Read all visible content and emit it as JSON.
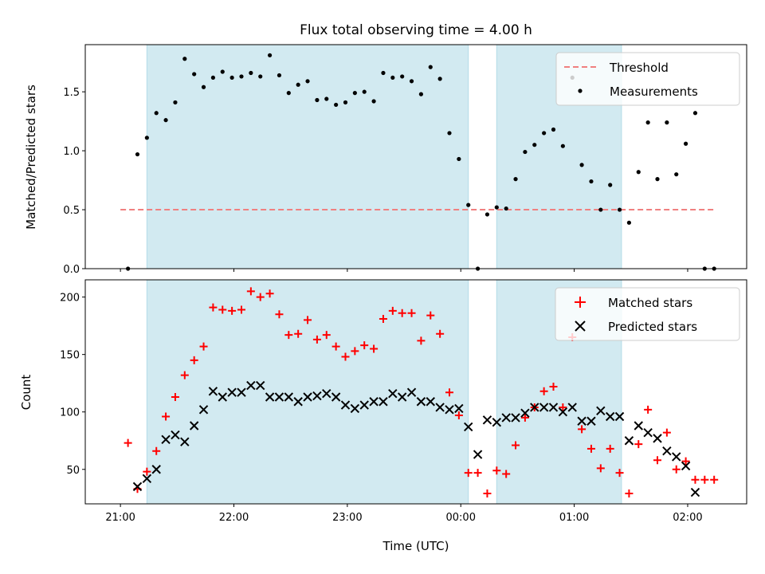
{
  "title": "Flux total observing time = 4.00 h",
  "colors": {
    "shade": "#add8e6",
    "threshold": "#f08080",
    "matched": "#ff0000",
    "predicted": "#000000",
    "measurement": "#000000"
  },
  "chart_data": [
    {
      "type": "scatter",
      "name": "ratio-panel",
      "ylabel": "Matched/Predicted stars",
      "xlabel": "",
      "ylim": [
        0,
        1.9
      ],
      "yticks": [
        "0.0",
        "0.5",
        "1.0",
        "1.5"
      ],
      "yticks_values": [
        0,
        0.5,
        1.0,
        1.5
      ],
      "xlim_hours": [
        20.69,
        26.52
      ],
      "shaded_intervals": [
        [
          "21:14",
          "24:04"
        ],
        [
          "24:19",
          "25:25"
        ]
      ],
      "legend_position": "upper-right",
      "threshold": {
        "label": "Threshold",
        "value": 0.5,
        "x_range": [
          "21:00",
          "26:15"
        ]
      },
      "series": [
        {
          "name": "Measurements",
          "marker": "dot",
          "x": [
            "21:04",
            "21:09",
            "21:14",
            "21:19",
            "21:24",
            "21:29",
            "21:34",
            "21:39",
            "21:44",
            "21:49",
            "21:54",
            "21:59",
            "22:04",
            "22:09",
            "22:14",
            "22:19",
            "22:24",
            "22:29",
            "22:34",
            "22:39",
            "22:44",
            "22:49",
            "22:54",
            "22:59",
            "23:04",
            "23:09",
            "23:14",
            "23:19",
            "23:24",
            "23:29",
            "23:34",
            "23:39",
            "23:44",
            "23:49",
            "23:54",
            "23:59",
            "24:04",
            "24:09",
            "24:14",
            "24:19",
            "24:24",
            "24:29",
            "24:34",
            "24:39",
            "24:44",
            "24:49",
            "24:54",
            "24:59",
            "25:04",
            "25:09",
            "25:14",
            "25:19",
            "25:24",
            "25:29",
            "25:34",
            "25:39",
            "25:44",
            "25:49",
            "25:54",
            "25:59",
            "26:04",
            "26:09",
            "26:14"
          ],
          "y": [
            0.0,
            0.97,
            1.11,
            1.32,
            1.26,
            1.41,
            1.78,
            1.65,
            1.54,
            1.62,
            1.67,
            1.62,
            1.63,
            1.66,
            1.63,
            1.81,
            1.64,
            1.49,
            1.56,
            1.59,
            1.43,
            1.44,
            1.39,
            1.41,
            1.49,
            1.5,
            1.42,
            1.66,
            1.62,
            1.63,
            1.59,
            1.48,
            1.71,
            1.61,
            1.15,
            0.93,
            0.54,
            0.0,
            0.46,
            0.52,
            0.51,
            0.76,
            0.99,
            1.05,
            1.15,
            1.18,
            1.04,
            1.62,
            0.88,
            0.74,
            0.5,
            0.71,
            0.5,
            0.39,
            0.82,
            1.24,
            0.76,
            1.24,
            0.8,
            1.06,
            1.32,
            0.0,
            0.0
          ]
        }
      ]
    },
    {
      "type": "scatter",
      "name": "count-panel",
      "ylabel": "Count",
      "xlabel": "Time (UTC)",
      "ylim": [
        20,
        215
      ],
      "yticks": [
        "50",
        "100",
        "150",
        "200"
      ],
      "yticks_values": [
        50,
        100,
        150,
        200
      ],
      "xlim_hours": [
        20.69,
        26.52
      ],
      "xticks": [
        "21:00",
        "22:00",
        "23:00",
        "00:00",
        "01:00",
        "02:00"
      ],
      "xticks_hours": [
        21,
        22,
        23,
        24,
        25,
        26
      ],
      "shaded_intervals": [
        [
          "21:14",
          "24:04"
        ],
        [
          "24:19",
          "25:25"
        ]
      ],
      "legend_position": "upper-right",
      "series": [
        {
          "name": "Matched stars",
          "marker": "plus",
          "x": [
            "21:04",
            "21:09",
            "21:14",
            "21:19",
            "21:24",
            "21:29",
            "21:34",
            "21:39",
            "21:44",
            "21:49",
            "21:54",
            "21:59",
            "22:04",
            "22:09",
            "22:14",
            "22:19",
            "22:24",
            "22:29",
            "22:34",
            "22:39",
            "22:44",
            "22:49",
            "22:54",
            "22:59",
            "23:04",
            "23:09",
            "23:14",
            "23:19",
            "23:24",
            "23:29",
            "23:34",
            "23:39",
            "23:44",
            "23:49",
            "23:54",
            "23:59",
            "24:04",
            "24:09",
            "24:14",
            "24:19",
            "24:24",
            "24:29",
            "24:34",
            "24:39",
            "24:44",
            "24:49",
            "24:54",
            "24:59",
            "25:04",
            "25:09",
            "25:14",
            "25:19",
            "25:24",
            "25:29",
            "25:34",
            "25:39",
            "25:44",
            "25:49",
            "25:54",
            "25:59",
            "26:04",
            "26:09",
            "26:14"
          ],
          "y": [
            73,
            33,
            48,
            66,
            96,
            113,
            132,
            145,
            157,
            191,
            189,
            188,
            189,
            205,
            200,
            203,
            185,
            167,
            168,
            180,
            163,
            167,
            157,
            148,
            153,
            158,
            155,
            181,
            188,
            186,
            186,
            162,
            184,
            168,
            117,
            97,
            47,
            47,
            29,
            49,
            46,
            71,
            95,
            104,
            118,
            122,
            104,
            165,
            85,
            68,
            51,
            68,
            47,
            29,
            72,
            102,
            58,
            82,
            50,
            57,
            41,
            41,
            41
          ]
        },
        {
          "name": "Predicted stars",
          "marker": "x",
          "x": [
            "21:09",
            "21:14",
            "21:19",
            "21:24",
            "21:29",
            "21:34",
            "21:39",
            "21:44",
            "21:49",
            "21:54",
            "21:59",
            "22:04",
            "22:09",
            "22:14",
            "22:19",
            "22:24",
            "22:29",
            "22:34",
            "22:39",
            "22:44",
            "22:49",
            "22:54",
            "22:59",
            "23:04",
            "23:09",
            "23:14",
            "23:19",
            "23:24",
            "23:29",
            "23:34",
            "23:39",
            "23:44",
            "23:49",
            "23:54",
            "23:59",
            "24:04",
            "24:09",
            "24:14",
            "24:19",
            "24:24",
            "24:29",
            "24:34",
            "24:39",
            "24:44",
            "24:49",
            "24:54",
            "24:59",
            "25:04",
            "25:09",
            "25:14",
            "25:19",
            "25:24",
            "25:29",
            "25:34",
            "25:39",
            "25:44",
            "25:49",
            "25:54",
            "25:59",
            "26:04"
          ],
          "y": [
            35,
            42,
            50,
            76,
            80,
            74,
            88,
            102,
            118,
            113,
            117,
            117,
            123,
            123,
            113,
            113,
            113,
            109,
            113,
            114,
            116,
            113,
            106,
            103,
            106,
            109,
            109,
            116,
            113,
            117,
            109,
            109,
            104,
            102,
            103,
            87,
            63,
            93,
            91,
            95,
            95,
            99,
            104,
            104,
            104,
            100,
            104,
            92,
            92,
            101,
            96,
            96,
            75,
            88,
            82,
            77,
            66,
            61,
            53,
            30
          ]
        }
      ]
    }
  ]
}
